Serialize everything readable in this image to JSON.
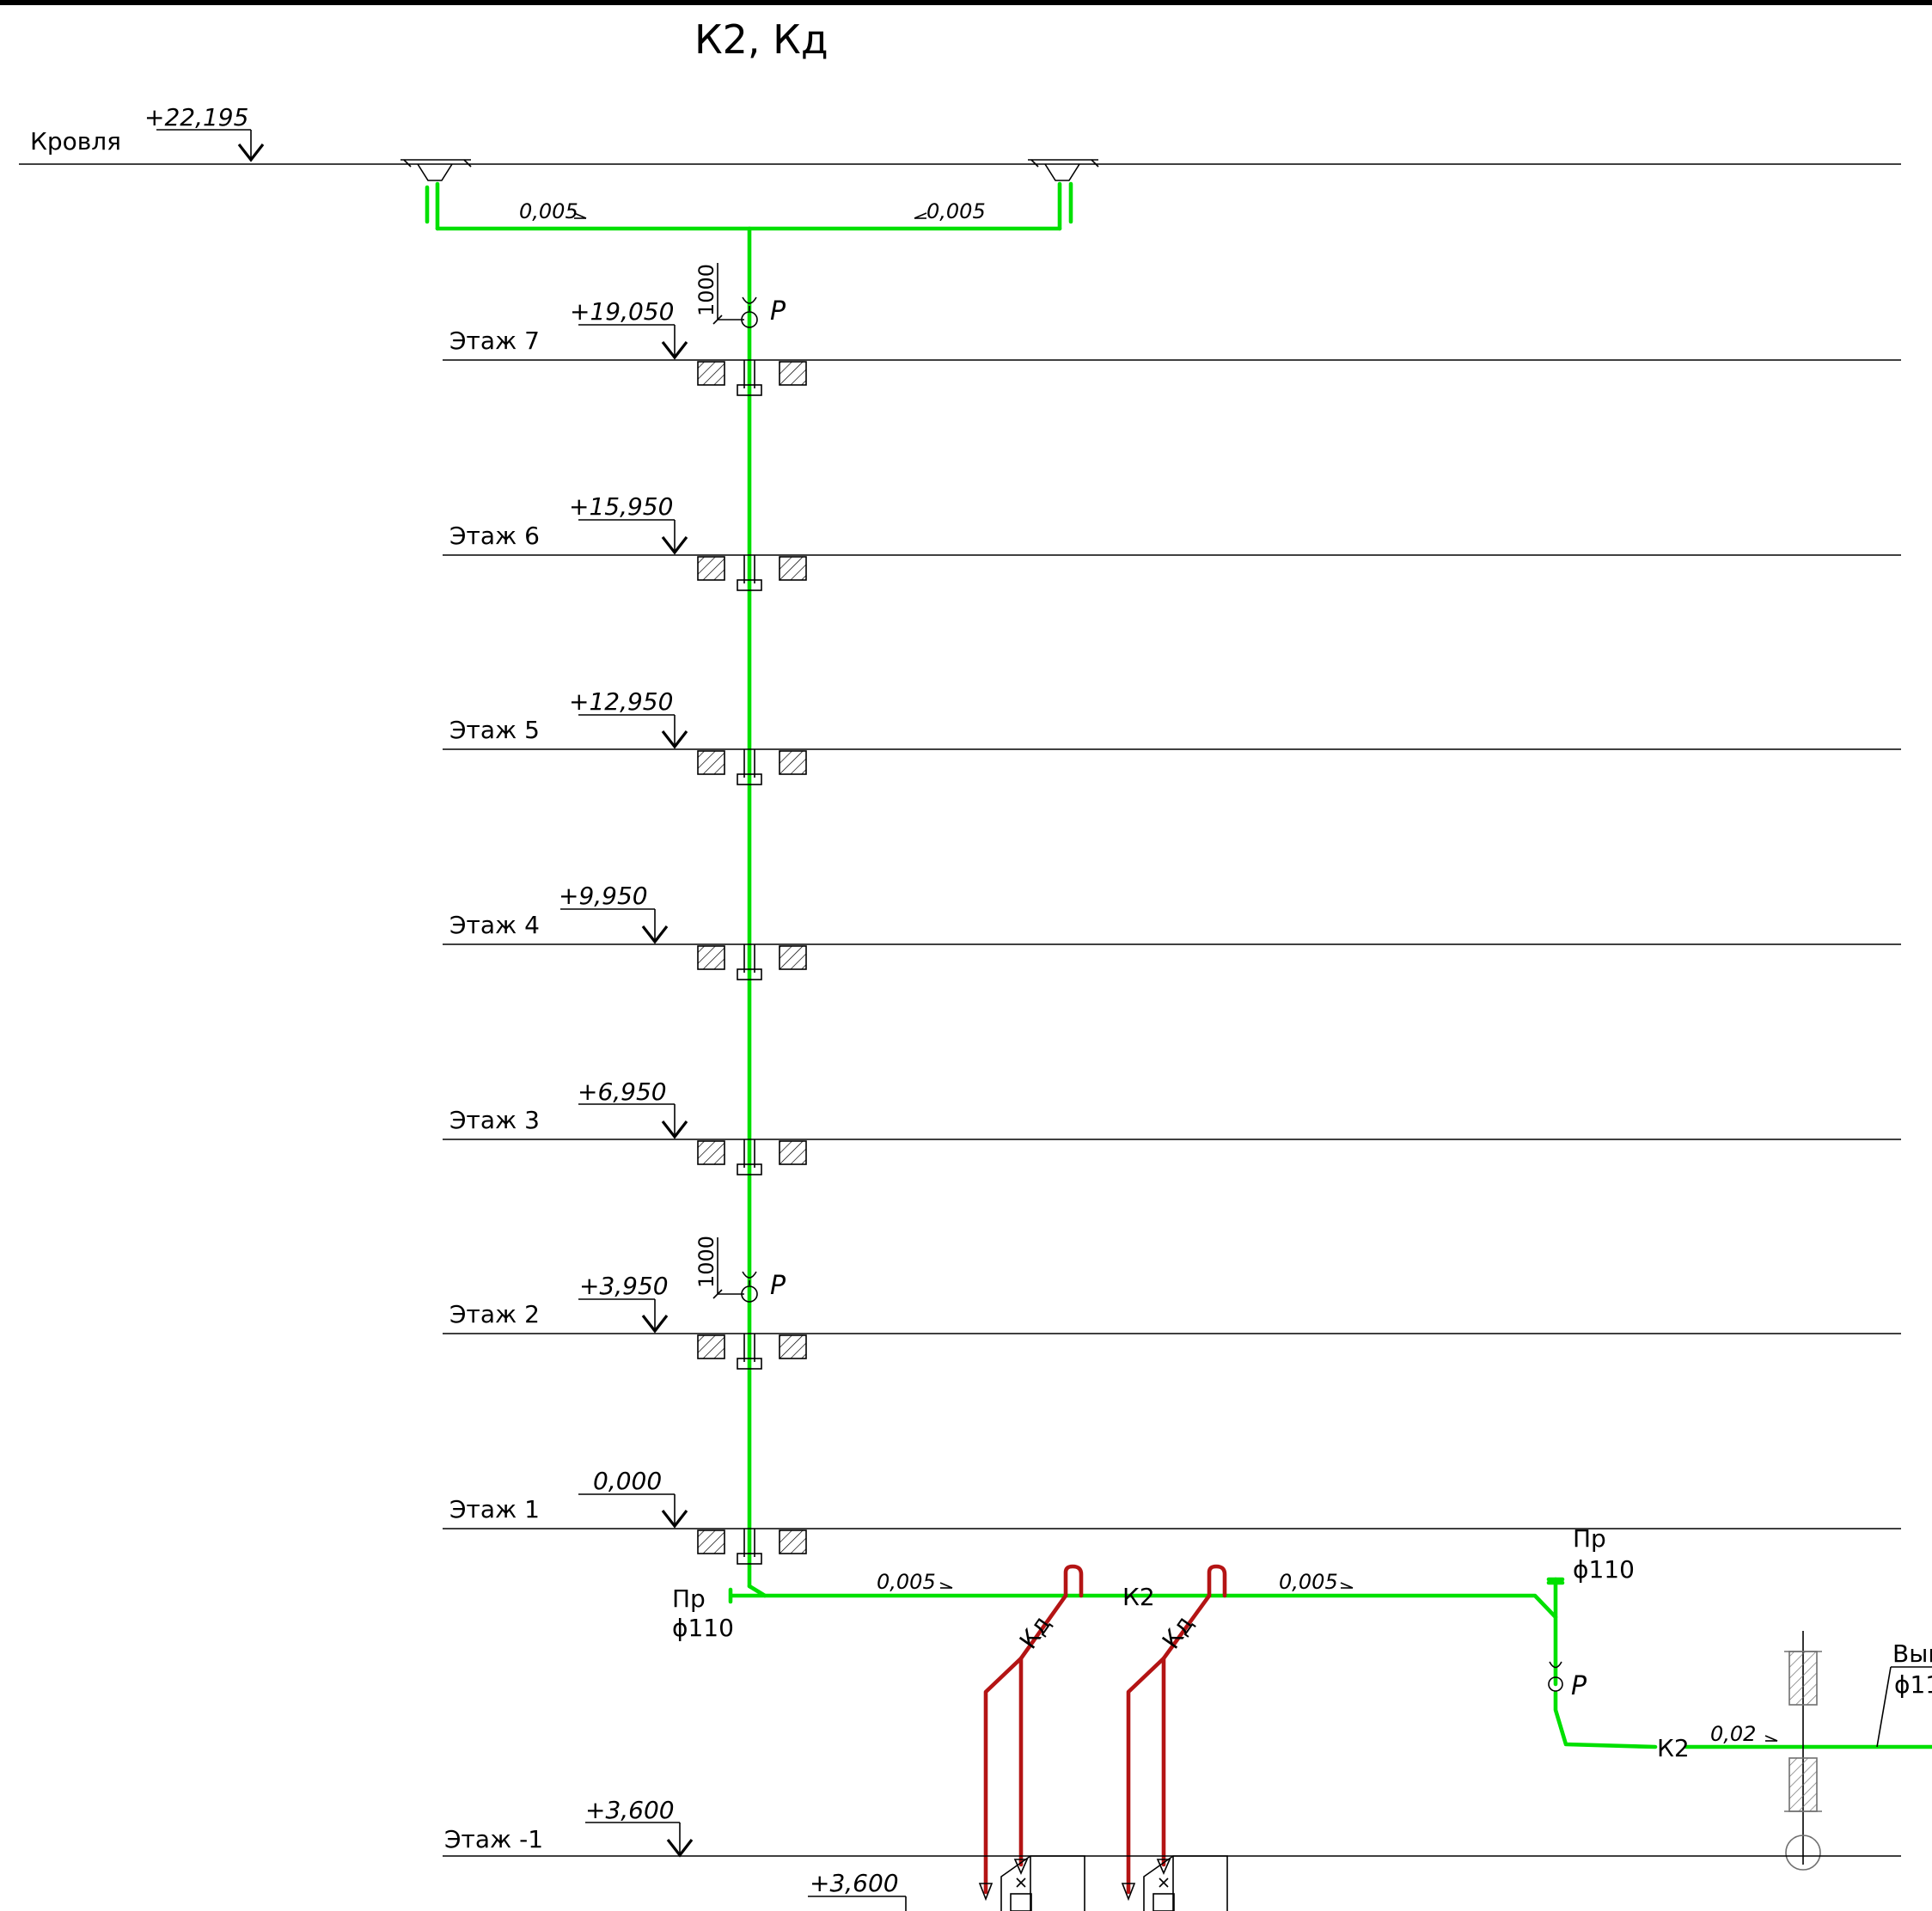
{
  "title": "К2, Кд",
  "roof": {
    "label": "Кровля",
    "elevation": "+22,195"
  },
  "floors": [
    {
      "label": "Этаж 7",
      "elevation": "+19,050"
    },
    {
      "label": "Этаж 6",
      "elevation": "+15,950"
    },
    {
      "label": "Этаж 5",
      "elevation": "+12,950"
    },
    {
      "label": "Этаж 4",
      "elevation": "+9,950"
    },
    {
      "label": "Этаж 3",
      "elevation": "+6,950"
    },
    {
      "label": "Этаж 2",
      "elevation": "+3,950"
    },
    {
      "label": "Этаж 1",
      "elevation": "0,000"
    },
    {
      "label": "Этаж -1",
      "elevation": "+3,600"
    }
  ],
  "sub_elevation": "+3,600",
  "slopes": {
    "roof_left": "0,005",
    "roof_right": "0,005",
    "basement_left": "0,005",
    "basement_right": "0,005",
    "outlet": "0,02"
  },
  "revision_marker": "Р",
  "revision_dim": "1000",
  "cleanout": {
    "label": "Пр",
    "diameter": "ϕ110"
  },
  "pipe_labels": {
    "k2": "К2",
    "kd": "Кд"
  },
  "outlet": {
    "label": "Вып",
    "diameter": "ϕ11"
  },
  "colors": {
    "rain_pipe": "#00e000",
    "drain_pipe": "#b41414",
    "lines": "#000000"
  }
}
